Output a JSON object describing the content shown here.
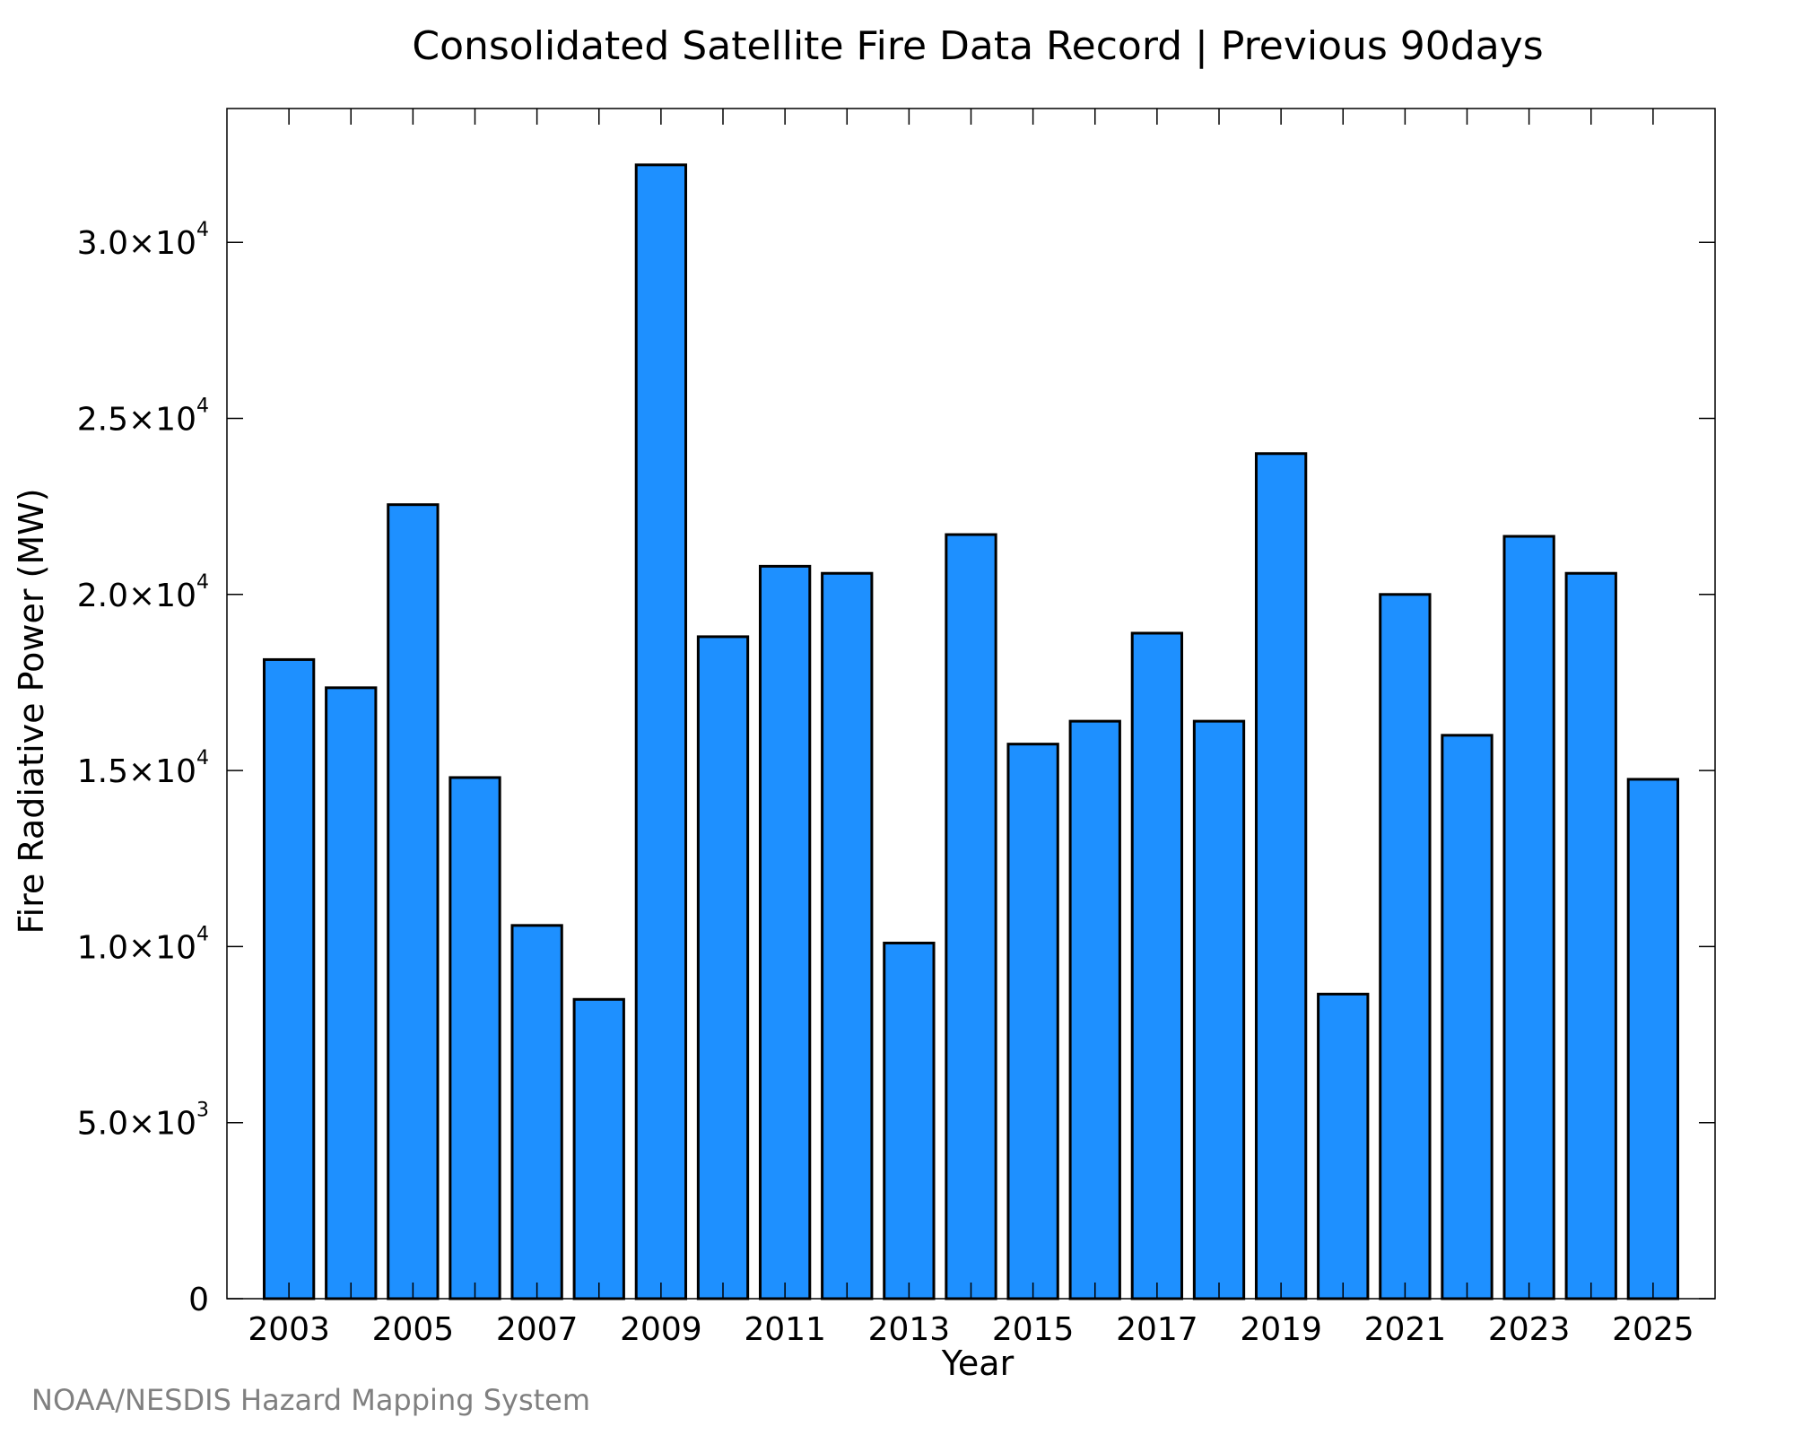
{
  "chart_data": {
    "type": "bar",
    "title": "Consolidated Satellite Fire Data Record | Previous 90days",
    "xlabel": "Year",
    "ylabel": "Fire Radiative Power (MW)",
    "credit": "NOAA/NESDIS Hazard Mapping System",
    "categories": [
      "2003",
      "2004",
      "2005",
      "2006",
      "2007",
      "2008",
      "2009",
      "2010",
      "2011",
      "2012",
      "2013",
      "2014",
      "2015",
      "2016",
      "2017",
      "2018",
      "2019",
      "2020",
      "2021",
      "2022",
      "2023",
      "2024",
      "2025"
    ],
    "values": [
      18150,
      17350,
      22550,
      14800,
      10600,
      8500,
      32200,
      18800,
      20800,
      20600,
      10100,
      21700,
      15750,
      16400,
      18900,
      16400,
      24000,
      8650,
      20000,
      16000,
      21650,
      20600,
      14750
    ],
    "ylim": [
      0,
      33800
    ],
    "x_tick_labels": [
      "2003",
      "2005",
      "2007",
      "2009",
      "2011",
      "2013",
      "2015",
      "2017",
      "2019",
      "2021",
      "2023",
      "2025"
    ],
    "y_ticks": [
      {
        "value": 0,
        "mantissa": "0",
        "exp": ""
      },
      {
        "value": 5000,
        "mantissa": "5.0×10",
        "exp": "3"
      },
      {
        "value": 10000,
        "mantissa": "1.0×10",
        "exp": "4"
      },
      {
        "value": 15000,
        "mantissa": "1.5×10",
        "exp": "4"
      },
      {
        "value": 20000,
        "mantissa": "2.0×10",
        "exp": "4"
      },
      {
        "value": 25000,
        "mantissa": "2.5×10",
        "exp": "4"
      },
      {
        "value": 30000,
        "mantissa": "3.0×10",
        "exp": "4"
      }
    ],
    "bar_color": "#1e90ff",
    "edge_color": "#000000",
    "grid": false,
    "legend": "none"
  }
}
